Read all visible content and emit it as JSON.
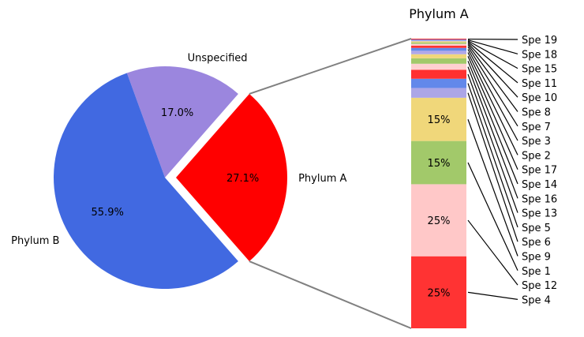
{
  "chart_data": [
    {
      "type": "pie",
      "categories": [
        "Phylum A",
        "Unspecified",
        "Phylum B"
      ],
      "values": [
        27.1,
        17.0,
        55.9
      ],
      "value_labels": [
        "27.1%",
        "17.0%",
        "55.9%"
      ],
      "colors": [
        "#ff0000",
        "#9b86de",
        "#4169e1"
      ],
      "exploded": "Phylum A"
    },
    {
      "type": "bar",
      "stacked": true,
      "title": "Phylum A",
      "categories": [
        "Spe 4",
        "Spe 12",
        "Spe 1",
        "Spe 9",
        "Spe 6",
        "Spe 5",
        "Spe 13",
        "Spe 16",
        "Spe 14",
        "Spe 17",
        "Spe 2",
        "Spe 3",
        "Spe 7",
        "Spe 8",
        "Spe 10",
        "Spe 11",
        "Spe 15",
        "Spe 18",
        "Spe 19"
      ],
      "values": [
        25,
        25,
        15,
        15,
        3.4,
        3.2,
        3.1,
        2.1,
        1.9,
        1.4,
        1.2,
        1.0,
        0.8,
        0.6,
        0.5,
        0.4,
        0.3,
        0.3,
        0.3
      ],
      "value_labels": [
        "25%",
        "25%",
        "15%",
        "15%",
        "",
        "",
        "",
        "",
        "",
        "",
        "",
        "",
        "",
        "",
        "",
        "",
        "",
        "",
        ""
      ],
      "colors": [
        "#ff3333",
        "#ffc8c8",
        "#a2c96a",
        "#f0d77a",
        "#aca6e6",
        "#6288ea",
        "#ff3030",
        "#ffd0d0",
        "#a2c96a",
        "#f0d77a",
        "#b0a8e8",
        "#6288ea",
        "#ff3030",
        "#ffd0d0",
        "#a2c96a",
        "#f0d77a",
        "#b0a8e8",
        "#6288ea",
        "#ff3030"
      ]
    }
  ]
}
